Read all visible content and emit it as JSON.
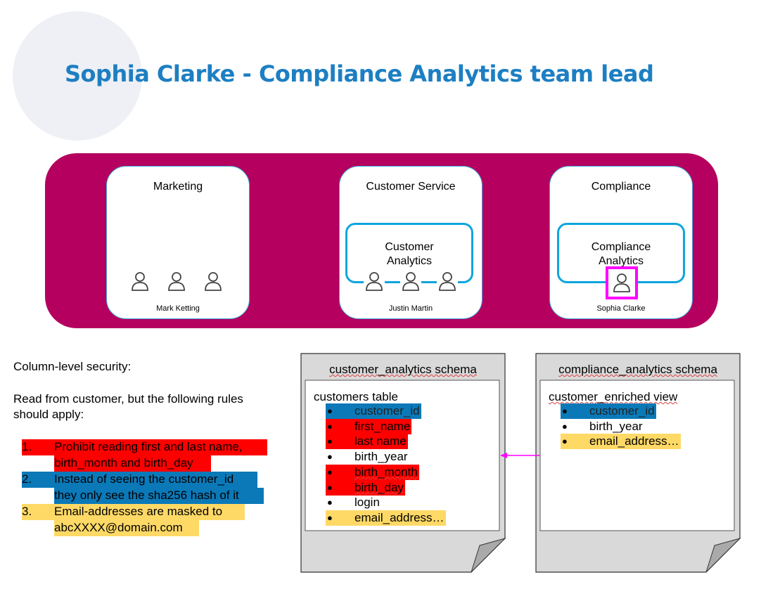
{
  "title": "Sophia Clarke - Compliance Analytics team lead",
  "departments": [
    {
      "name": "Marketing",
      "lead": "Mark Ketting"
    },
    {
      "name": "Customer Service",
      "team": "Customer Analytics",
      "lead": "Justin Martin"
    },
    {
      "name": "Compliance",
      "team": "Compliance Analytics",
      "lead": "Sophia Clarke"
    }
  ],
  "team_lines": {
    "customer": [
      "Customer",
      "Analytics"
    ],
    "compliance": [
      "Compliance",
      "Analytics"
    ]
  },
  "notes": {
    "heading": "Column-level security:",
    "intro_lines": [
      "Read from customer, but the following rules",
      "should apply:"
    ],
    "rules": [
      {
        "num": "1.",
        "lines": [
          "Prohibit reading first and last name,",
          "birth_month and birth_day"
        ],
        "color": "#ff0000"
      },
      {
        "num": "2.",
        "lines": [
          "Instead of seeing the customer_id",
          "they only see the sha256 hash of it"
        ],
        "color": "#0b79b8"
      },
      {
        "num": "3.",
        "lines": [
          "Email-addresses are masked to",
          "abcXXXX@domain.com"
        ],
        "color": "#ffd966"
      }
    ]
  },
  "schemas": [
    {
      "title": "customer_analytics schema",
      "object": "customers table",
      "columns": [
        "customer_id",
        "first_name",
        "last name",
        "birth_year",
        "birth_month",
        "birth_day",
        "login",
        "email_address…"
      ]
    },
    {
      "title": "compliance_analytics schema",
      "object": "customer_enriched view",
      "columns": [
        "customer_id",
        "birth_year",
        "email_address…"
      ]
    }
  ],
  "colors": {
    "title": "#1d7fc2",
    "band": "#b5005f",
    "team_border": "#0ea5dd",
    "highlight": "#ff00ff",
    "prohibited": "#ff0000",
    "hashed": "#0b79b8",
    "masked": "#ffd966"
  }
}
